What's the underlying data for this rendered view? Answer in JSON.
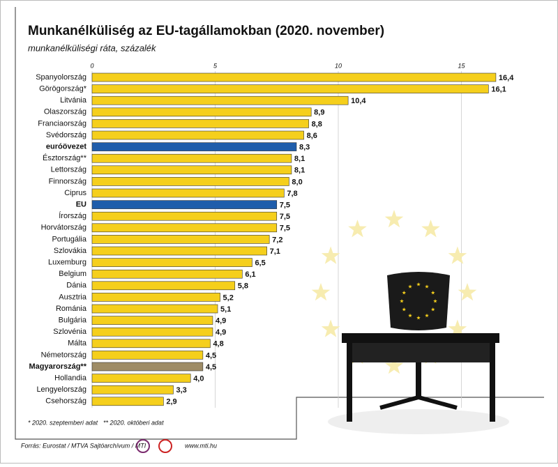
{
  "chart_data": {
    "type": "barh",
    "title": "Munkanélküliség az EU-tagállamokban (2020. november)",
    "subtitle": "munkanélküliségi ráta, százalék",
    "categories": [
      "Spanyolország",
      "Görögország*",
      "Litvánia",
      "Olaszország",
      "Franciaország",
      "Svédország",
      "euróövezet",
      "Észtország**",
      "Lettország",
      "Finnország",
      "Ciprus",
      "EU",
      "Írország",
      "Horvátország",
      "Portugália",
      "Szlovákia",
      "Luxemburg",
      "Belgium",
      "Dánia",
      "Ausztria",
      "Románia",
      "Bulgária",
      "Szlovénia",
      "Málta",
      "Németország",
      "Magyarország**",
      "Hollandia",
      "Lengyelország",
      "Csehország"
    ],
    "values": [
      16.4,
      16.1,
      10.4,
      8.9,
      8.8,
      8.6,
      8.3,
      8.1,
      8.1,
      8.0,
      7.8,
      7.5,
      7.5,
      7.5,
      7.2,
      7.1,
      6.5,
      6.1,
      5.8,
      5.2,
      5.1,
      4.9,
      4.9,
      4.8,
      4.5,
      4.5,
      4.0,
      3.3,
      2.9
    ],
    "value_labels": [
      "16,4",
      "16,1",
      "10,4",
      "8,9",
      "8,8",
      "8,6",
      "8,3",
      "8,1",
      "8,1",
      "8,0",
      "7,8",
      "7,5",
      "7,5",
      "7,5",
      "7,2",
      "7,1",
      "6,5",
      "6,1",
      "5,8",
      "5,2",
      "5,1",
      "4,9",
      "4,9",
      "4,8",
      "4,5",
      "4,5",
      "4,0",
      "3,3",
      "2,9"
    ],
    "color": "#f5cf1c",
    "colors": [
      "#f5cf1c",
      "#f5cf1c",
      "#f5cf1c",
      "#f5cf1c",
      "#f5cf1c",
      "#f5cf1c",
      "#1f5dab",
      "#f5cf1c",
      "#f5cf1c",
      "#f5cf1c",
      "#f5cf1c",
      "#1f5dab",
      "#f5cf1c",
      "#f5cf1c",
      "#f5cf1c",
      "#f5cf1c",
      "#f5cf1c",
      "#f5cf1c",
      "#f5cf1c",
      "#f5cf1c",
      "#f5cf1c",
      "#f5cf1c",
      "#f5cf1c",
      "#f5cf1c",
      "#f5cf1c",
      "#9e8c66",
      "#f5cf1c",
      "#f5cf1c",
      "#f5cf1c"
    ],
    "xlim": [
      0,
      17
    ],
    "xticks": [
      0,
      5,
      10,
      15
    ],
    "grid": true,
    "footnotes": [
      "* 2020. szeptemberi adat",
      "** 2020. októberi adat"
    ],
    "source": "Forrás: Eurostat / MTVA Sajtóarchívum / MTI",
    "website": "www.mti.hu"
  }
}
